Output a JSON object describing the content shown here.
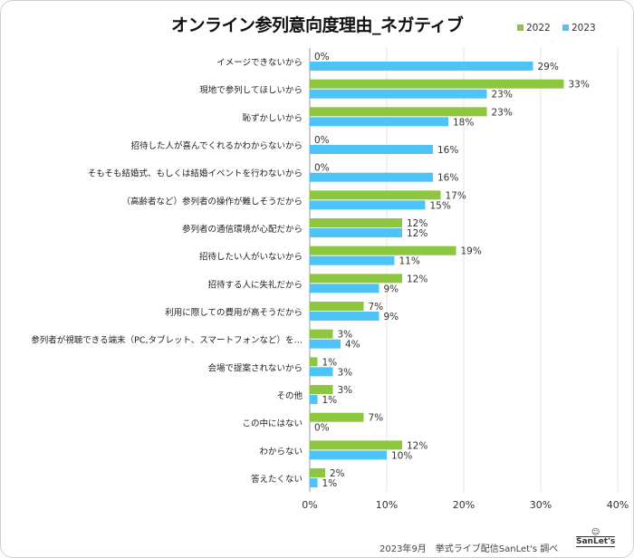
{
  "chart_data": {
    "type": "bar",
    "orientation": "horizontal",
    "title": "オンライン参列意向度理由_ネガティブ",
    "categories": [
      "イメージできないから",
      "現地で参列してほしいから",
      "恥ずかしいから",
      "招待した人が喜んでくれるかわからないから",
      "そもそも結婚式、もしくは結婚イベントを行わないから",
      "（高齢者など）参列者の操作が難しそうだから",
      "参列者の通信環境が心配だから",
      "招待したい人がいないから",
      "招待する人に失礼だから",
      "利用に際しての費用が高そうだから",
      "参列者が視聴できる端末（PC,タブレット、スマートフォンなど）を…",
      "会場で提案されないから",
      "その他",
      "この中にはない",
      "わからない",
      "答えたくない"
    ],
    "series": [
      {
        "name": "2022",
        "color": "#8dc63f",
        "values": [
          0,
          33,
          23,
          0,
          0,
          17,
          12,
          19,
          12,
          7,
          3,
          1,
          3,
          7,
          12,
          2
        ]
      },
      {
        "name": "2023",
        "color": "#4dc3f7",
        "values": [
          29,
          23,
          18,
          16,
          16,
          15,
          12,
          11,
          9,
          9,
          4,
          3,
          1,
          0,
          10,
          1
        ]
      }
    ],
    "xlim": [
      0,
      40
    ],
    "xticks": [
      "0%",
      "10%",
      "20%",
      "30%",
      "40%"
    ],
    "grid": true,
    "legend": "top-right"
  },
  "footer": "2023年9月　挙式ライブ配信SanLet's 調べ",
  "logo": "SanLet's"
}
